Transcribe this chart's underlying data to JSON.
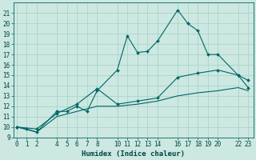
{
  "xlabel": "Humidex (Indice chaleur)",
  "background_color": "#cce8e0",
  "grid_color": "#aad4cc",
  "line_color": "#006666",
  "x_ticks": [
    0,
    1,
    2,
    4,
    5,
    6,
    7,
    8,
    10,
    11,
    12,
    13,
    14,
    16,
    17,
    18,
    19,
    20,
    22,
    23
  ],
  "ylim": [
    9,
    22
  ],
  "xlim": [
    -0.3,
    23.5
  ],
  "series1_x": [
    0,
    1,
    2,
    4,
    5,
    6,
    7,
    8,
    10,
    11,
    12,
    13,
    14,
    16,
    17,
    18,
    19,
    20,
    22,
    23
  ],
  "series1_y": [
    10.0,
    9.8,
    9.5,
    11.5,
    11.5,
    12.0,
    11.5,
    13.5,
    15.5,
    18.8,
    17.2,
    17.3,
    18.3,
    21.3,
    20.0,
    19.3,
    17.0,
    17.0,
    15.0,
    14.5
  ],
  "series2_x": [
    0,
    2,
    4,
    6,
    8,
    10,
    12,
    14,
    16,
    18,
    20,
    22,
    23
  ],
  "series2_y": [
    10.0,
    9.8,
    11.3,
    12.2,
    13.7,
    12.2,
    12.5,
    12.8,
    14.8,
    15.2,
    15.5,
    15.0,
    13.8
  ],
  "series3_x": [
    0,
    2,
    4,
    6,
    8,
    10,
    12,
    14,
    16,
    18,
    20,
    22,
    23
  ],
  "series3_y": [
    10.0,
    9.5,
    11.0,
    11.5,
    12.0,
    12.0,
    12.2,
    12.5,
    13.0,
    13.3,
    13.5,
    13.8,
    13.5
  ],
  "yticks": [
    9,
    10,
    11,
    12,
    13,
    14,
    15,
    16,
    17,
    18,
    19,
    20,
    21
  ],
  "tick_fontsize": 5.5,
  "xlabel_fontsize": 6.5
}
